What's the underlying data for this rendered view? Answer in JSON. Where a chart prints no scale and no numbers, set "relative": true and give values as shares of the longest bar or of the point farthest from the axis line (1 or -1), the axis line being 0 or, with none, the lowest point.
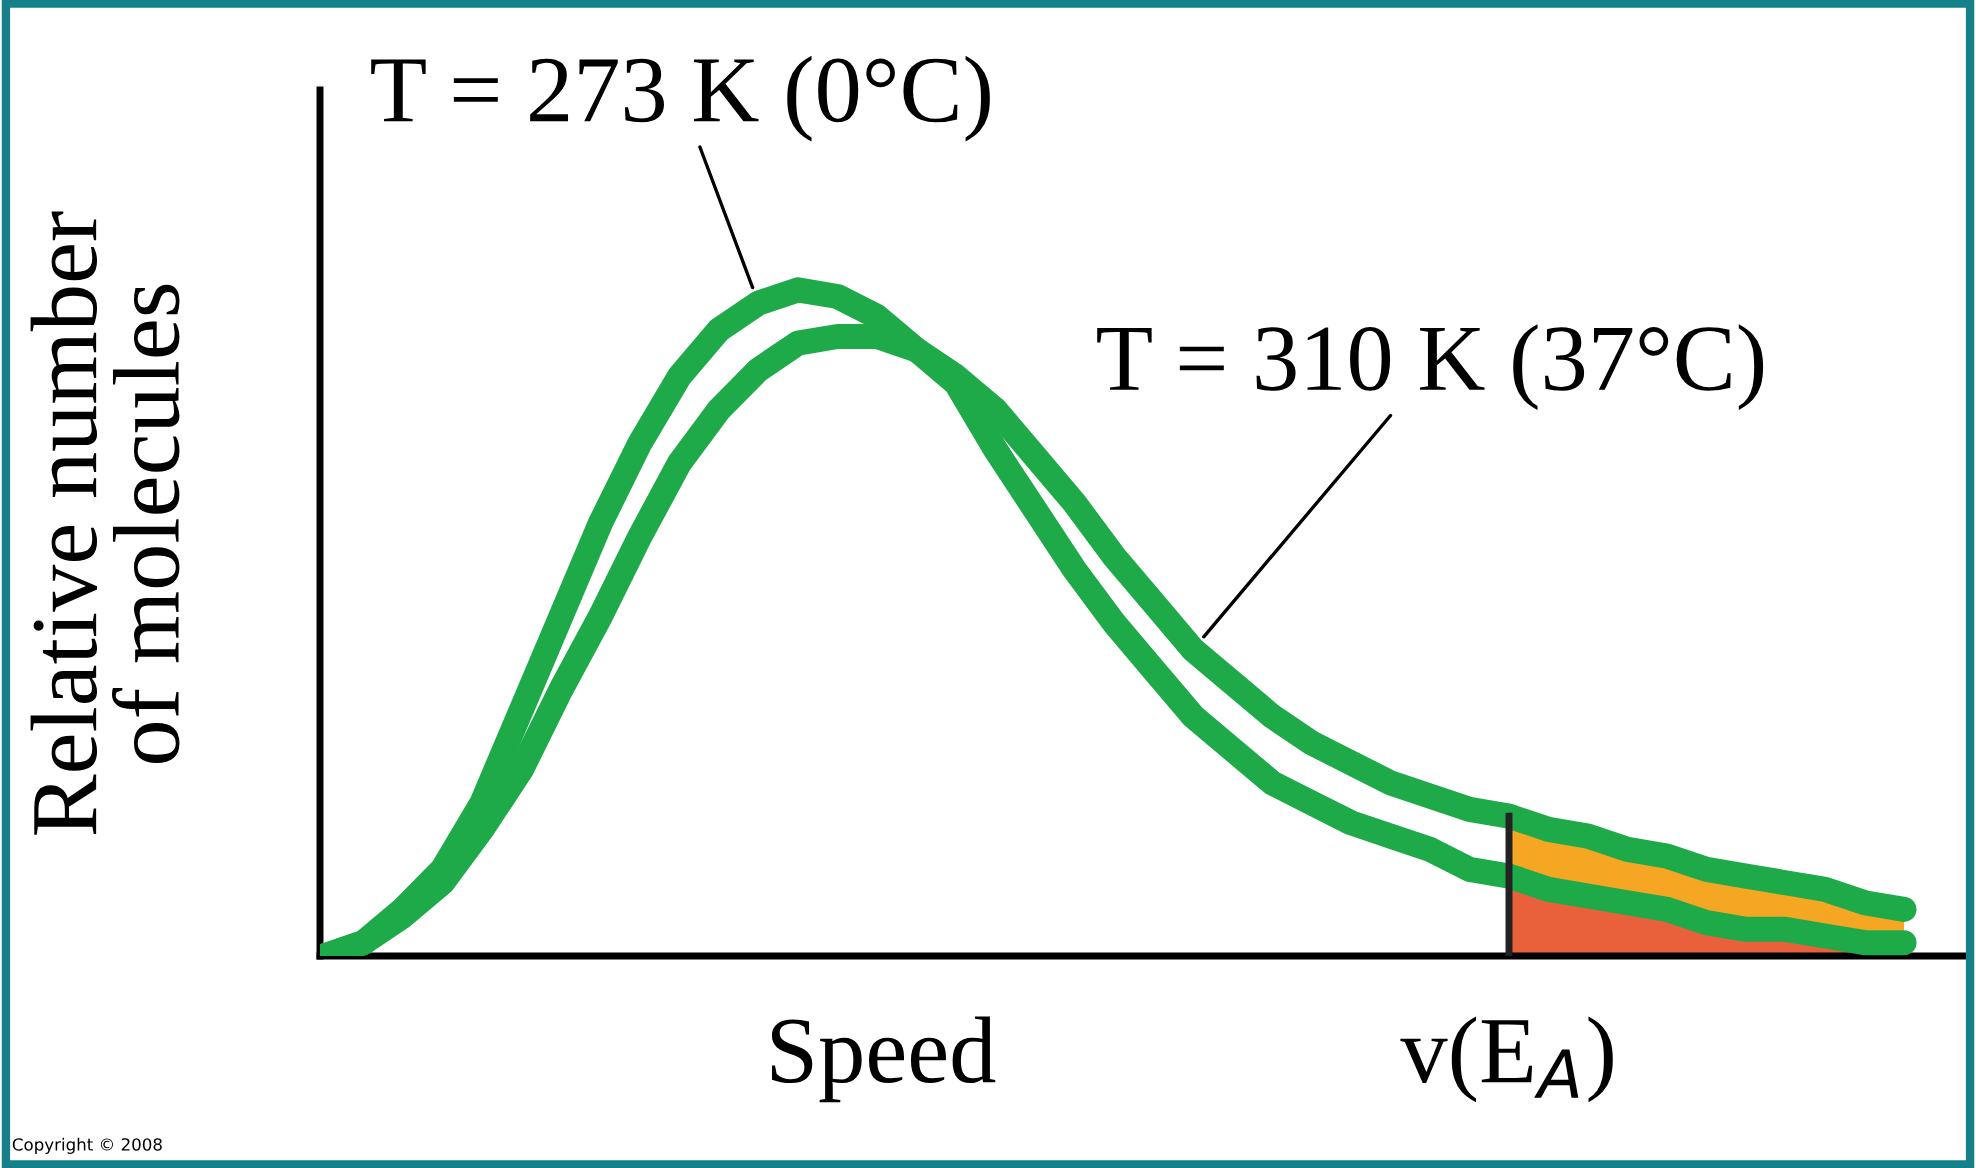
{
  "chart_data": {
    "type": "line",
    "relative": true,
    "xlabel": "Speed",
    "ylabel": "Relative number\nof molecules",
    "categories": [
      null,
      null,
      null,
      null,
      null,
      null,
      null,
      null,
      null,
      null,
      null,
      null,
      null,
      null,
      null,
      null,
      null,
      null,
      null,
      null,
      null,
      null,
      null,
      null,
      null,
      null,
      null,
      null,
      null,
      null,
      null,
      null,
      null,
      null,
      null,
      null,
      null,
      null,
      null,
      null,
      null
    ],
    "series": [
      {
        "type": "area",
        "color": "#f5a623",
        "values": [
          null,
          null,
          null,
          null,
          null,
          null,
          null,
          null,
          null,
          null,
          null,
          null,
          null,
          null,
          null,
          null,
          null,
          null,
          null,
          null,
          null,
          null,
          null,
          null,
          null,
          null,
          null,
          null,
          null,
          null,
          0.21,
          0.19,
          0.18,
          0.16,
          0.15,
          0.13,
          0.12,
          0.11,
          0.1,
          0.08,
          0.07
        ]
      },
      {
        "type": "area",
        "color": "#e8613a",
        "values": [
          null,
          null,
          null,
          null,
          null,
          null,
          null,
          null,
          null,
          null,
          null,
          null,
          null,
          null,
          null,
          null,
          null,
          null,
          null,
          null,
          null,
          null,
          null,
          null,
          null,
          null,
          null,
          null,
          null,
          null,
          0.12,
          0.1,
          0.09,
          0.08,
          0.07,
          0.05,
          0.04,
          0.04,
          0.03,
          0.02,
          0.02
        ]
      },
      {
        "name": "T = 273 K (0°C)",
        "color": "#1faa4a",
        "values": [
          0,
          0.02,
          0.07,
          0.13,
          0.23,
          0.37,
          0.51,
          0.65,
          0.77,
          0.87,
          0.94,
          0.98,
          1,
          0.99,
          0.96,
          0.91,
          0.86,
          0.76,
          0.67,
          0.58,
          0.5,
          0.43,
          0.36,
          0.31,
          0.26,
          0.23,
          0.2,
          0.18,
          0.16,
          0.13,
          0.12,
          0.1,
          0.09,
          0.08,
          0.07,
          0.05,
          0.04,
          0.04,
          0.03,
          0.02,
          0.02
        ]
      },
      {
        "name": "T = 310 K (37°C)",
        "color": "#1faa4a",
        "values": [
          0,
          0.02,
          0.06,
          0.11,
          0.19,
          0.28,
          0.4,
          0.51,
          0.63,
          0.74,
          0.82,
          0.88,
          0.92,
          0.93,
          0.93,
          0.91,
          0.87,
          0.82,
          0.75,
          0.68,
          0.6,
          0.53,
          0.46,
          0.41,
          0.36,
          0.32,
          0.29,
          0.26,
          0.24,
          0.22,
          0.21,
          0.19,
          0.18,
          0.16,
          0.15,
          0.13,
          0.12,
          0.11,
          0.1,
          0.08,
          0.07
        ]
      }
    ],
    "annotations": [
      "v(E$_{A}$)",
      "Copyright © 2008"
    ],
    "legend": false,
    "marker": "none",
    "line_style": "solid"
  }
}
